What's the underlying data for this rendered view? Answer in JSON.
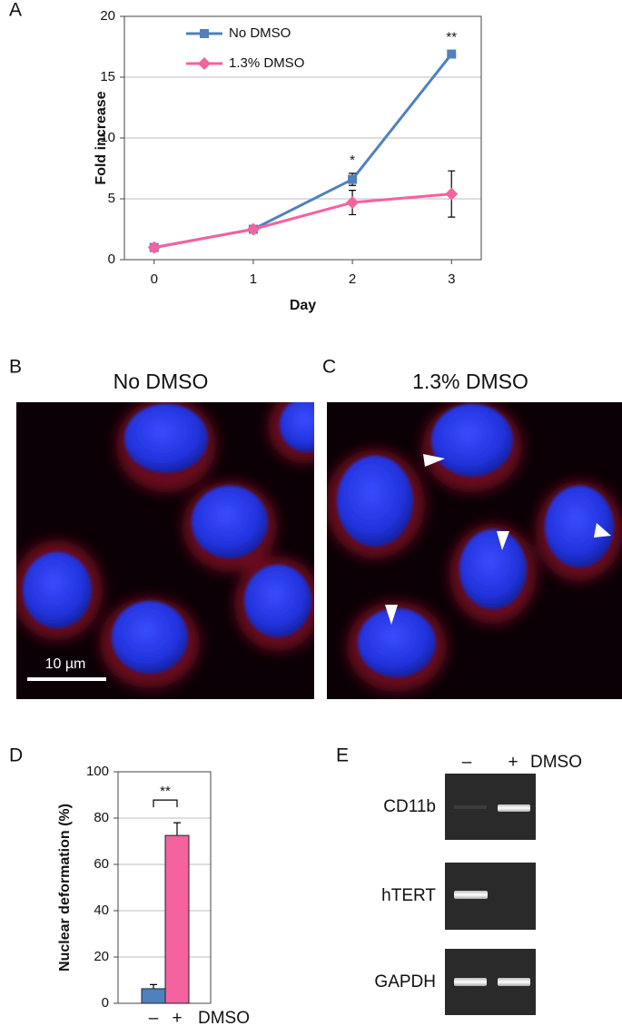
{
  "chart_data": [
    {
      "type": "line",
      "panel": "A",
      "xlabel": "Day",
      "ylabel": "Fold increase",
      "x": [
        0,
        1,
        2,
        3
      ],
      "xlim": [
        -0.3,
        3.3
      ],
      "xticks": [
        0,
        1,
        2,
        3
      ],
      "ylim": [
        0,
        20
      ],
      "yticks": [
        0,
        5,
        10,
        15,
        20
      ],
      "grid": true,
      "legend": "upper left",
      "series": [
        {
          "name": "No DMSO",
          "color": "#4f81bd",
          "marker": "square",
          "values": [
            1,
            2.5,
            6.6,
            16.9
          ],
          "errors": [
            0.1,
            0.2,
            0.5,
            0.3
          ]
        },
        {
          "name": "1.3% DMSO",
          "color": "#f462a0",
          "marker": "diamond",
          "values": [
            1,
            2.5,
            4.7,
            5.4
          ],
          "errors": [
            0.1,
            0.2,
            1.0,
            1.9
          ]
        }
      ],
      "annotations": [
        {
          "x": 2,
          "text": "*"
        },
        {
          "x": 3,
          "text": "**"
        }
      ]
    },
    {
      "type": "bar",
      "panel": "D",
      "ylabel": "Nuclear deformation (%)",
      "xlabel": "DMSO",
      "categories": [
        "–",
        "+"
      ],
      "values": [
        6.3,
        72.5
      ],
      "errors": [
        1.8,
        5.5
      ],
      "colors": [
        "#4f81bd",
        "#f462a0"
      ],
      "ylim": [
        0,
        100
      ],
      "yticks": [
        0,
        20,
        40,
        60,
        80,
        100
      ],
      "grid": true,
      "annotations": [
        {
          "text": "**"
        }
      ]
    }
  ],
  "panels": {
    "B": {
      "label": "B",
      "title": "No DMSO",
      "scale_bar": "10 µm"
    },
    "C": {
      "label": "C",
      "title": "1.3% DMSO"
    },
    "E": {
      "label": "E",
      "lanes": [
        "–",
        "+"
      ],
      "lane_title": "DMSO",
      "genes": [
        "CD11b",
        "hTERT",
        "GAPDH"
      ]
    }
  }
}
